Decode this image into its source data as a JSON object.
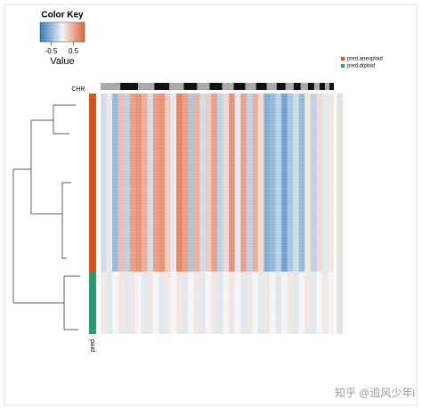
{
  "chart_data": {
    "type": "heatmap",
    "color_key": {
      "title": "Color Key",
      "xlabel": "Value",
      "xlim": [
        -1,
        1
      ],
      "xticks": [
        -0.5,
        0.5
      ],
      "low_color": "#2f7bbd",
      "mid_color": "#f4f4f4",
      "high_color": "#e0623a"
    },
    "chr_label": "CHR",
    "side_label": "pred",
    "series": [
      {
        "name": "pred.aneuploid",
        "color": "#d6541b"
      },
      {
        "name": "pred.diploid",
        "color": "#2a9a72"
      }
    ],
    "values": [
      [
        -0.2,
        0.1,
        -0.5,
        0.4,
        -0.3,
        0.6,
        0.7,
        0.5,
        -0.2,
        0.6,
        0.7,
        0.3,
        -0.1,
        0.8,
        0.6,
        -0.4,
        0.5,
        -0.2,
        0.3,
        0.6,
        -0.3,
        0.2,
        0.7,
        -0.1,
        0.6,
        -0.3,
        0.5,
        0.2,
        -0.6,
        -0.5,
        -0.3,
        -0.7,
        -0.4,
        -0.2,
        -0.5,
        0.1,
        -0.3,
        0.2,
        -0.1,
        0.1
      ],
      [
        0.1,
        -0.1,
        0,
        0.1,
        -0.1,
        0.1,
        0,
        -0.1,
        0.1,
        0,
        -0.1,
        0.1,
        0,
        0.1,
        -0.1,
        0,
        0.1,
        -0.1,
        0,
        0.1,
        -0.1,
        0,
        0.1,
        0,
        -0.1,
        0.1,
        0,
        -0.1,
        0.1,
        0,
        -0.1,
        0,
        0.1,
        -0.1,
        0,
        0.1,
        -0.1,
        0,
        0.1,
        0
      ]
    ],
    "watermark": "知乎 @追风少年i"
  }
}
